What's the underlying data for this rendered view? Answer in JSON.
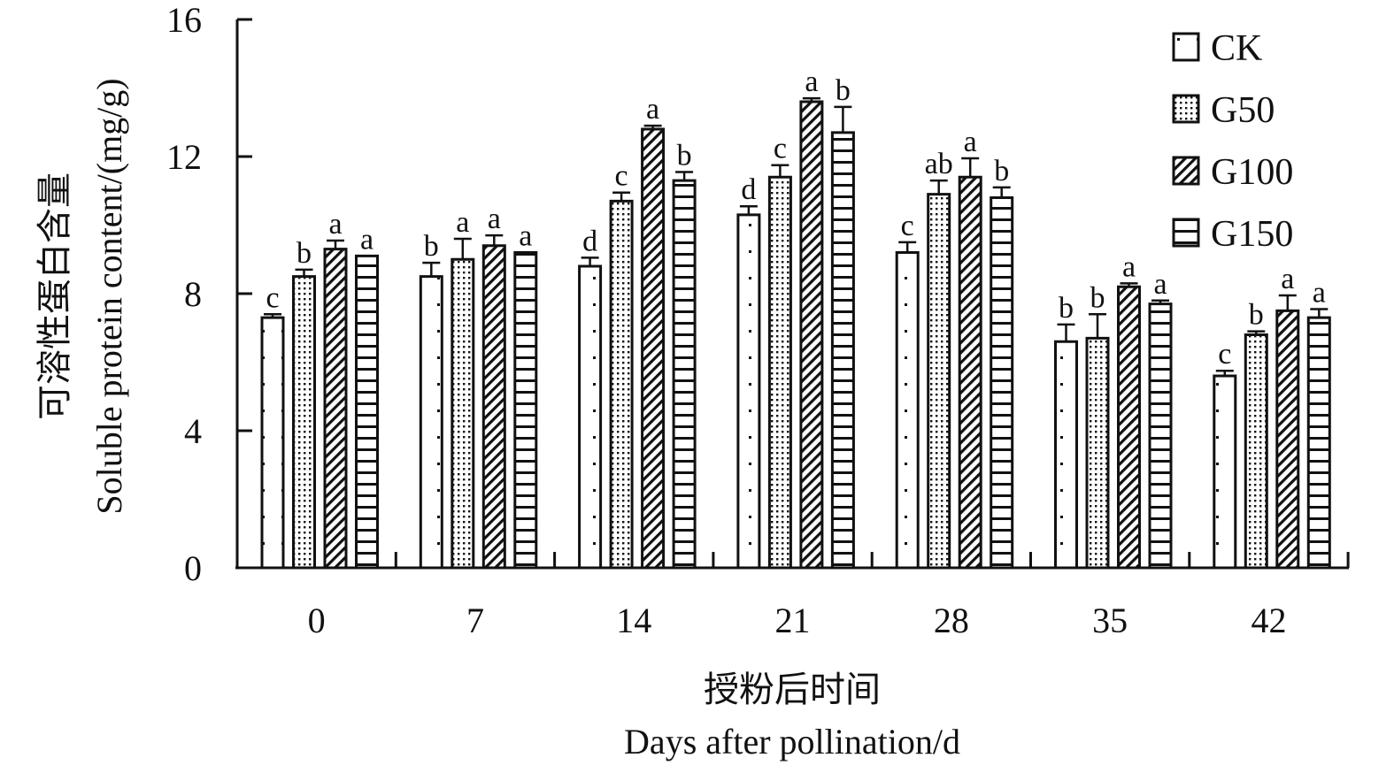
{
  "chart_data": {
    "type": "bar",
    "title": "",
    "categories": [
      "0",
      "7",
      "14",
      "21",
      "28",
      "35",
      "42"
    ],
    "series": [
      {
        "name": "CK",
        "pattern": "dots-sparse",
        "values": [
          7.3,
          8.5,
          8.8,
          10.3,
          9.2,
          6.6,
          5.6
        ],
        "errors": [
          0.1,
          0.4,
          0.25,
          0.25,
          0.3,
          0.5,
          0.15
        ],
        "labels": [
          "c",
          "b",
          "d",
          "d",
          "c",
          "b",
          "c"
        ]
      },
      {
        "name": "G50",
        "pattern": "dots-dense",
        "values": [
          8.5,
          9.0,
          10.7,
          11.4,
          10.9,
          6.7,
          6.8
        ],
        "errors": [
          0.2,
          0.6,
          0.25,
          0.35,
          0.4,
          0.7,
          0.1
        ],
        "labels": [
          "b",
          "a",
          "c",
          "c",
          "ab",
          "b",
          "b"
        ]
      },
      {
        "name": "G100",
        "pattern": "diagonal",
        "values": [
          9.3,
          9.4,
          12.8,
          13.6,
          11.4,
          8.2,
          7.5
        ],
        "errors": [
          0.25,
          0.3,
          0.1,
          0.1,
          0.55,
          0.1,
          0.45
        ],
        "labels": [
          "a",
          "a",
          "a",
          "a",
          "a",
          "a",
          "a"
        ]
      },
      {
        "name": "G150",
        "pattern": "horizontal",
        "values": [
          9.1,
          9.2,
          11.3,
          12.7,
          10.8,
          7.7,
          7.3
        ],
        "errors": [
          0.0,
          0.0,
          0.25,
          0.75,
          0.3,
          0.1,
          0.25
        ],
        "labels": [
          "a",
          "a",
          "b",
          "b",
          "b",
          "a",
          "a"
        ]
      }
    ],
    "ylim": [
      0,
      16
    ],
    "yticks": [
      "0",
      "4",
      "8",
      "12",
      "16"
    ],
    "ytick_values": [
      0,
      4,
      8,
      12,
      16
    ],
    "ylabel_cn": "可溶性蛋白含量",
    "ylabel_en": "Soluble protein content/(mg/g)",
    "xlabel_cn": "授粉后时间",
    "xlabel_en": "Days after pollination/d",
    "legend_position": "top-right",
    "grid": false
  }
}
